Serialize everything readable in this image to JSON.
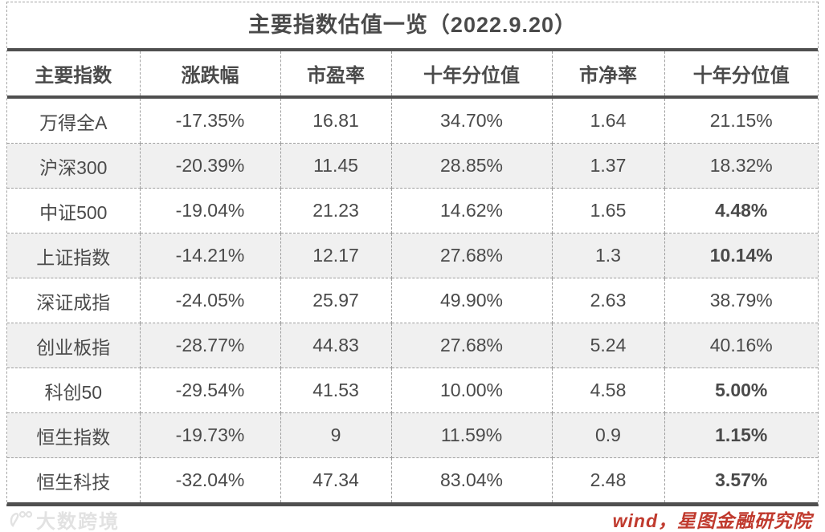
{
  "chart_data": {
    "type": "table",
    "title": "主要指数估值一览（2022.9.20）",
    "columns": [
      "主要指数",
      "涨跌幅",
      "市盈率",
      "十年分位值",
      "市净率",
      "十年分位值"
    ],
    "rows": [
      {
        "cells": [
          "万得全A",
          "-17.35%",
          "16.81",
          "34.70%",
          "1.64",
          "21.15%"
        ],
        "bold_last": false
      },
      {
        "cells": [
          "沪深300",
          "-20.39%",
          "11.45",
          "28.85%",
          "1.37",
          "18.32%"
        ],
        "bold_last": false
      },
      {
        "cells": [
          "中证500",
          "-19.04%",
          "21.23",
          "14.62%",
          "1.65",
          "4.48%"
        ],
        "bold_last": true
      },
      {
        "cells": [
          "上证指数",
          "-14.21%",
          "12.17",
          "27.68%",
          "1.3",
          "10.14%"
        ],
        "bold_last": true
      },
      {
        "cells": [
          "深证成指",
          "-24.05%",
          "25.97",
          "49.90%",
          "2.63",
          "38.79%"
        ],
        "bold_last": false
      },
      {
        "cells": [
          "创业板指",
          "-28.77%",
          "44.83",
          "27.68%",
          "5.24",
          "40.16%"
        ],
        "bold_last": false
      },
      {
        "cells": [
          "科创50",
          "-29.54%",
          "41.53",
          "10.00%",
          "4.58",
          "5.00%"
        ],
        "bold_last": true
      },
      {
        "cells": [
          "恒生指数",
          "-19.73%",
          "9",
          "11.59%",
          "0.9",
          "1.15%"
        ],
        "bold_last": true
      },
      {
        "cells": [
          "恒生科技",
          "-32.04%",
          "47.34",
          "83.04%",
          "2.48",
          "3.57%"
        ],
        "bold_last": true
      }
    ]
  },
  "footer": {
    "watermark": "大数跨境",
    "source": "wind，星图金融研究院"
  },
  "colors": {
    "heavy_rule": "#4F4F4F",
    "dashed_rule": "#9E9E9E",
    "text": "#4A4A4A",
    "alt_row_bg": "#F0F0F0",
    "source_red": "#C03A2E",
    "watermark_gray": "#E2E2E2"
  }
}
